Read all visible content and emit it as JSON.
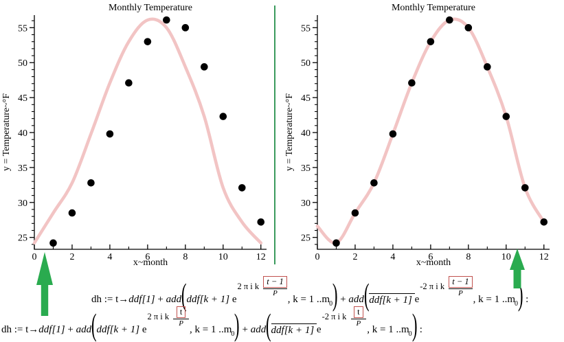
{
  "colors": {
    "curve_pink": "#f2c4c4",
    "dot_black": "#000000",
    "arrow_green": "#2aab4f",
    "divider_green": "#3a9a5c",
    "box_red": "#c0504d",
    "axis_black": "#000000"
  },
  "chart_data": [
    {
      "type": "scatter",
      "title": "Monthly Temperature",
      "xlabel": "x~month",
      "ylabel": "y = Temperature~°F",
      "x": [
        1,
        2,
        3,
        4,
        5,
        6,
        7,
        8,
        9,
        10,
        11,
        12
      ],
      "y": [
        24.2,
        28.5,
        32.8,
        39.8,
        47.1,
        53.0,
        56.1,
        55.0,
        49.4,
        42.3,
        32.1,
        27.2
      ],
      "fit_curve": [
        [
          0,
          24.2
        ],
        [
          1,
          28.5
        ],
        [
          2,
          32.8
        ],
        [
          3,
          39.8
        ],
        [
          4,
          47.1
        ],
        [
          5,
          53.0
        ],
        [
          6,
          56.1
        ],
        [
          7,
          55.0
        ],
        [
          8,
          49.4
        ],
        [
          9,
          42.3
        ],
        [
          10,
          32.1
        ],
        [
          11,
          27.2
        ],
        [
          12,
          24.2
        ]
      ],
      "xticks": [
        0,
        2,
        4,
        6,
        8,
        10,
        12
      ],
      "yticks": [
        25,
        30,
        35,
        40,
        45,
        50,
        55
      ],
      "xlim": [
        0,
        12.3
      ],
      "ylim": [
        23.3,
        56.8
      ],
      "arrow_points_at_x": 0.55
    },
    {
      "type": "scatter",
      "title": "Monthly Temperature",
      "xlabel": "x~month",
      "ylabel": "y = Temperature~°F",
      "x": [
        1,
        2,
        3,
        4,
        5,
        6,
        7,
        8,
        9,
        10,
        11,
        12
      ],
      "y": [
        24.2,
        28.5,
        32.8,
        39.8,
        47.1,
        53.0,
        56.1,
        55.0,
        49.4,
        42.3,
        32.1,
        27.2
      ],
      "fit_curve": [
        [
          0,
          26.6
        ],
        [
          1,
          24.2
        ],
        [
          2,
          28.5
        ],
        [
          3,
          32.8
        ],
        [
          4,
          39.8
        ],
        [
          5,
          47.1
        ],
        [
          6,
          53.0
        ],
        [
          7,
          56.1
        ],
        [
          8,
          55.0
        ],
        [
          9,
          49.4
        ],
        [
          10,
          42.3
        ],
        [
          11,
          32.1
        ],
        [
          12,
          27.2
        ]
      ],
      "xticks": [
        0,
        2,
        4,
        6,
        8,
        10,
        12
      ],
      "yticks": [
        25,
        30,
        35,
        40,
        45,
        50,
        55
      ],
      "xlim": [
        0,
        12.3
      ],
      "ylim": [
        23.3,
        56.8
      ],
      "arrow_points_at_x": 10.7
    }
  ],
  "formulas": {
    "shifted": {
      "prefix": "dh := t→",
      "ddf1": "ddf[1]",
      "plus": " + ",
      "add": "add",
      "lparen": "(",
      "rparen": ")",
      "coef": "ddf[k + 1] ",
      "e": "e",
      "exp_pos": "2 π i k ",
      "exp_neg": "-2 π i k ",
      "boxed": "t − 1",
      "den": "P",
      "range": ", k = 1 ..m",
      "sub": "0",
      "colon": " :"
    },
    "unshifted": {
      "prefix": "dh := t→",
      "ddf1": "ddf[1]",
      "plus": " + ",
      "add": "add",
      "lparen": "(",
      "rparen": ")",
      "coef": "ddf[k + 1] ",
      "e": "e",
      "exp_pos": "2 π i k ",
      "exp_neg": "-2 π i k ",
      "boxed": "t",
      "den": "P",
      "range": ", k = 1 ..m",
      "sub": "0",
      "colon": " :"
    }
  }
}
